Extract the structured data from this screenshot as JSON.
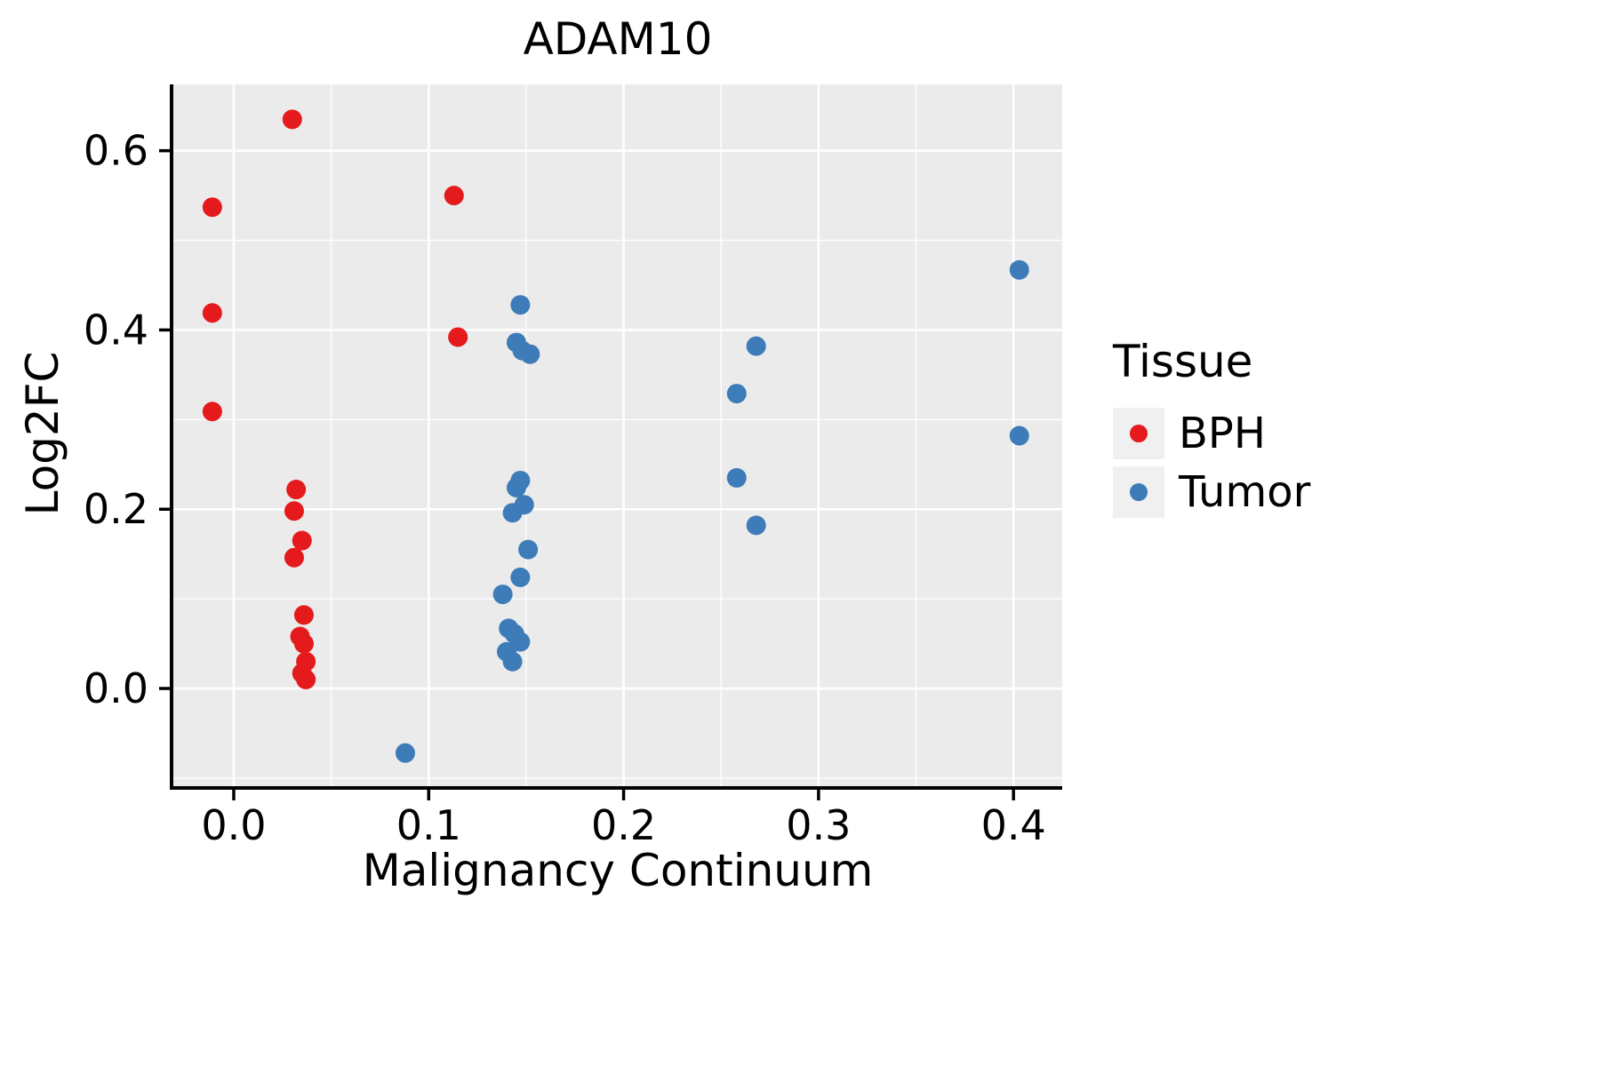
{
  "chart": {
    "title": "ADAM10",
    "xlabel": "Malignancy Continuum",
    "ylabel": "Log2FC",
    "legend": {
      "title": "Tissue",
      "items": [
        {
          "label": "BPH",
          "color": "#e41a1c"
        },
        {
          "label": "Tumor",
          "color": "#3d7cb8"
        }
      ]
    }
  },
  "chart_data": {
    "type": "scatter",
    "title": "ADAM10",
    "xlabel": "Malignancy Continuum",
    "ylabel": "Log2FC",
    "xlim": [
      -0.031,
      0.425
    ],
    "ylim": [
      -0.109,
      0.674
    ],
    "xticks": [
      0.0,
      0.1,
      0.2,
      0.3,
      0.4
    ],
    "yticks": [
      0.0,
      0.2,
      0.4,
      0.6
    ],
    "grid": true,
    "panel_color": "#ebebeb",
    "grid_color": "#ffffff",
    "legend_position": "right",
    "series": [
      {
        "name": "BPH",
        "color": "#e41a1c",
        "points": [
          [
            -0.011,
            0.537
          ],
          [
            -0.011,
            0.419
          ],
          [
            -0.011,
            0.309
          ],
          [
            0.03,
            0.635
          ],
          [
            0.032,
            0.222
          ],
          [
            0.031,
            0.198
          ],
          [
            0.035,
            0.165
          ],
          [
            0.031,
            0.146
          ],
          [
            0.036,
            0.082
          ],
          [
            0.034,
            0.058
          ],
          [
            0.036,
            0.05
          ],
          [
            0.037,
            0.03
          ],
          [
            0.035,
            0.017
          ],
          [
            0.037,
            0.01
          ],
          [
            0.113,
            0.55
          ],
          [
            0.115,
            0.392
          ]
        ]
      },
      {
        "name": "Tumor",
        "color": "#3d7cb8",
        "points": [
          [
            0.088,
            -0.072
          ],
          [
            0.147,
            0.428
          ],
          [
            0.145,
            0.386
          ],
          [
            0.148,
            0.377
          ],
          [
            0.152,
            0.373
          ],
          [
            0.147,
            0.232
          ],
          [
            0.145,
            0.224
          ],
          [
            0.149,
            0.205
          ],
          [
            0.143,
            0.196
          ],
          [
            0.151,
            0.155
          ],
          [
            0.147,
            0.124
          ],
          [
            0.138,
            0.105
          ],
          [
            0.141,
            0.067
          ],
          [
            0.144,
            0.061
          ],
          [
            0.147,
            0.052
          ],
          [
            0.14,
            0.041
          ],
          [
            0.143,
            0.03
          ],
          [
            0.268,
            0.382
          ],
          [
            0.258,
            0.329
          ],
          [
            0.258,
            0.235
          ],
          [
            0.268,
            0.182
          ],
          [
            0.403,
            0.467
          ],
          [
            0.403,
            0.282
          ]
        ]
      }
    ]
  }
}
